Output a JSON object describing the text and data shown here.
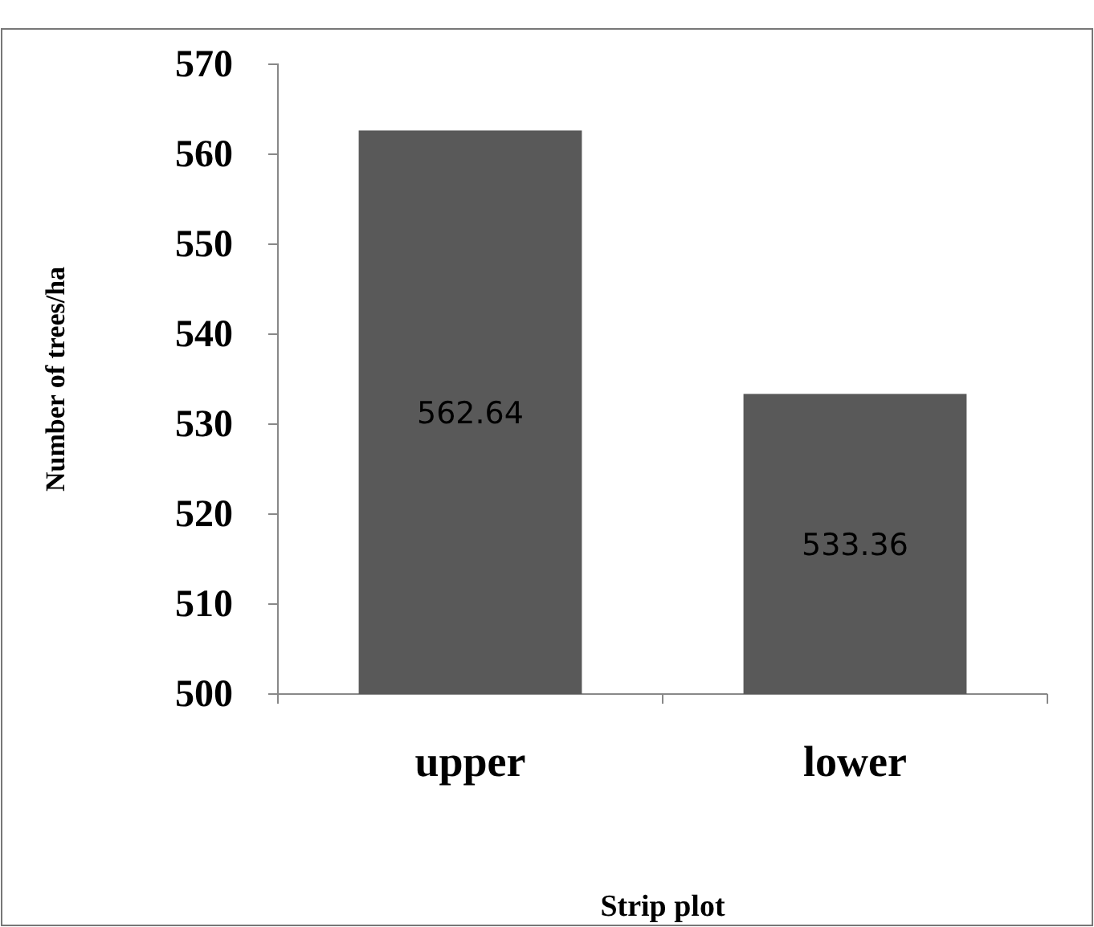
{
  "chart_data": {
    "type": "bar",
    "xlabel": "Strip plot",
    "ylabel": "Number of trees/ha",
    "categories": [
      "upper",
      "lower"
    ],
    "values": [
      562.64,
      533.36
    ],
    "color": "#595959",
    "ylim": [
      500,
      570
    ],
    "yticks": [
      500,
      510,
      520,
      530,
      540,
      550,
      560,
      570
    ],
    "grid": false,
    "data_labels": true
  }
}
